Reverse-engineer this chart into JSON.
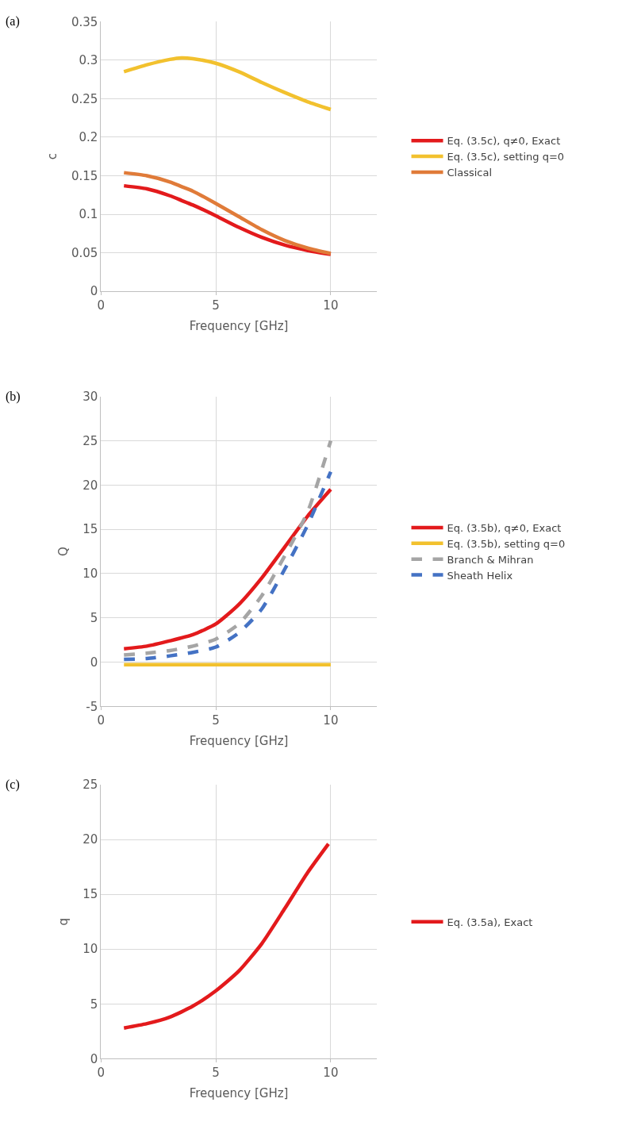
{
  "chart_data": [
    {
      "type": "line",
      "title": "(a)",
      "xlabel": "Frequency [GHz]",
      "ylabel": "c",
      "x": [
        1,
        2,
        3,
        3.5,
        4,
        5,
        6,
        7,
        8,
        9,
        10
      ],
      "xlim": [
        0,
        12
      ],
      "xticks": [
        0,
        5,
        10
      ],
      "ylim": [
        0,
        0.35
      ],
      "yticks": [
        0,
        0.05,
        0.1,
        0.15,
        0.2,
        0.25,
        0.3,
        0.35
      ],
      "grid": true,
      "legend": "right",
      "marker": "none",
      "series": [
        {
          "name": "Eq. (3.5c), q≠0, Exact",
          "color": "#e31a1c",
          "line_style": "solid",
          "values": [
            0.137,
            0.133,
            0.124,
            0.118,
            0.112,
            0.098,
            0.083,
            0.07,
            0.06,
            0.053,
            0.048
          ]
        },
        {
          "name": "Eq. (3.5c), setting q=0",
          "color": "#f2c12e",
          "line_style": "solid",
          "values": [
            0.285,
            0.294,
            0.301,
            0.303,
            0.302,
            0.296,
            0.285,
            0.271,
            0.258,
            0.246,
            0.236
          ]
        },
        {
          "name": "Classical",
          "color": "#e07b39",
          "line_style": "solid",
          "values": [
            0.154,
            0.15,
            0.142,
            0.136,
            0.13,
            0.114,
            0.097,
            0.08,
            0.066,
            0.056,
            0.049
          ]
        }
      ]
    },
    {
      "type": "line",
      "title": "(b)",
      "xlabel": "Frequency [GHz]",
      "ylabel": "Q",
      "x": [
        1,
        2,
        3,
        4,
        5,
        6,
        7,
        8,
        9,
        10
      ],
      "xlim": [
        0,
        12
      ],
      "xticks": [
        0,
        5,
        10
      ],
      "ylim": [
        -5,
        30
      ],
      "yticks": [
        -5,
        0,
        5,
        10,
        15,
        20,
        25,
        30
      ],
      "grid": true,
      "legend": "right",
      "marker": "none",
      "series": [
        {
          "name": "Eq. (3.5b), q≠0, Exact",
          "color": "#e31a1c",
          "line_style": "solid",
          "values": [
            1.5,
            1.8,
            2.4,
            3.1,
            4.3,
            6.5,
            9.5,
            13.0,
            16.5,
            19.5
          ]
        },
        {
          "name": "Eq. (3.5b), setting q=0",
          "color": "#f2c12e",
          "line_style": "solid",
          "values": [
            -0.3,
            -0.3,
            -0.3,
            -0.3,
            -0.3,
            -0.3,
            -0.3,
            -0.3,
            -0.3,
            -0.3
          ]
        },
        {
          "name": "Branch & Mihran",
          "color": "#a5a5a5",
          "line_style": "dashed",
          "values": [
            0.8,
            1.0,
            1.3,
            1.8,
            2.6,
            4.3,
            7.5,
            12.0,
            17.0,
            25.0
          ]
        },
        {
          "name": "Sheath Helix",
          "color": "#4472c4",
          "line_style": "dashed",
          "values": [
            0.3,
            0.4,
            0.7,
            1.1,
            1.7,
            3.3,
            6.0,
            10.5,
            15.5,
            21.5
          ]
        }
      ]
    },
    {
      "type": "line",
      "title": "(c)",
      "xlabel": "Frequency [GHz]",
      "ylabel": "q",
      "x": [
        1,
        2,
        3,
        4,
        5,
        6,
        7,
        8,
        9,
        9.9
      ],
      "xlim": [
        0,
        12
      ],
      "xticks": [
        0,
        5,
        10
      ],
      "ylim": [
        0,
        25
      ],
      "yticks": [
        0,
        5,
        10,
        15,
        20,
        25
      ],
      "grid": true,
      "legend": "right",
      "marker": "none",
      "series": [
        {
          "name": "Eq. (3.5a), Exact",
          "color": "#e31a1c",
          "line_style": "solid",
          "values": [
            2.8,
            3.2,
            3.8,
            4.8,
            6.2,
            8.0,
            10.5,
            13.7,
            17.0,
            19.6
          ]
        }
      ]
    }
  ]
}
